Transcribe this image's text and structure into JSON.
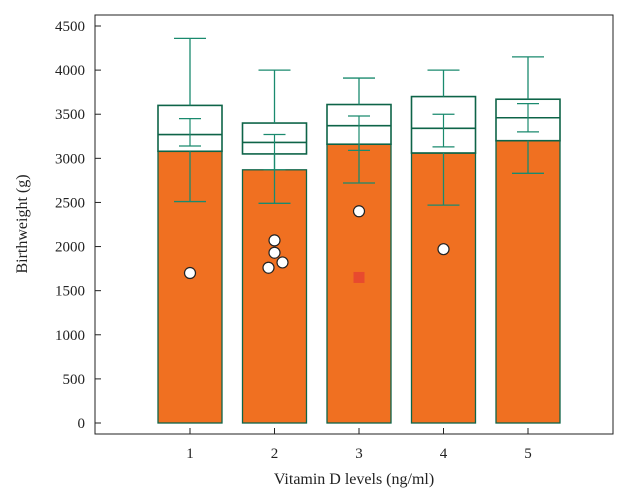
{
  "chart_data": {
    "type": "bar",
    "title": "",
    "xlabel": "Vitamin D levels (ng/ml)",
    "ylabel": "Birthweight (g)",
    "ylim": [
      0,
      4600
    ],
    "yticks": [
      0,
      500,
      1000,
      1500,
      2000,
      2500,
      3000,
      3500,
      4000,
      4500
    ],
    "categories": [
      "1",
      "2",
      "3",
      "4",
      "5"
    ],
    "colors": {
      "bar_fill": "#f07021",
      "box_stroke": "#0e6448",
      "whisker": "#1a8a6e",
      "outlier_fill": "#ffffff",
      "extreme_fill": "#e84a2e",
      "axis": "#222222"
    },
    "groups": [
      {
        "category": "1",
        "mean": 3080,
        "q1": 3080,
        "median": 3270,
        "q3": 3600,
        "whisker_low": 2510,
        "whisker_high": 4360,
        "ci_low": 3140,
        "ci_high": 3450,
        "outliers": [
          1700
        ],
        "extremes": []
      },
      {
        "category": "2",
        "mean": 2870,
        "q1": 3050,
        "median": 3180,
        "q3": 3400,
        "whisker_low": 2490,
        "whisker_high": 4000,
        "ci_low": 2870,
        "ci_high": 3270,
        "outliers": [
          2070,
          1930,
          1760,
          1820
        ],
        "extremes": []
      },
      {
        "category": "3",
        "mean": 3160,
        "q1": 3160,
        "median": 3370,
        "q3": 3610,
        "whisker_low": 2720,
        "whisker_high": 3910,
        "ci_low": 3090,
        "ci_high": 3480,
        "outliers": [
          2400
        ],
        "extremes": [
          1650
        ]
      },
      {
        "category": "4",
        "mean": 3060,
        "q1": 3060,
        "median": 3340,
        "q3": 3700,
        "whisker_low": 2470,
        "whisker_high": 4000,
        "ci_low": 3130,
        "ci_high": 3500,
        "outliers": [
          1970
        ],
        "extremes": []
      },
      {
        "category": "5",
        "mean": 3200,
        "q1": 3200,
        "median": 3460,
        "q3": 3670,
        "whisker_low": 2830,
        "whisker_high": 4150,
        "ci_low": 3300,
        "ci_high": 3620,
        "outliers": [],
        "extremes": []
      }
    ]
  }
}
